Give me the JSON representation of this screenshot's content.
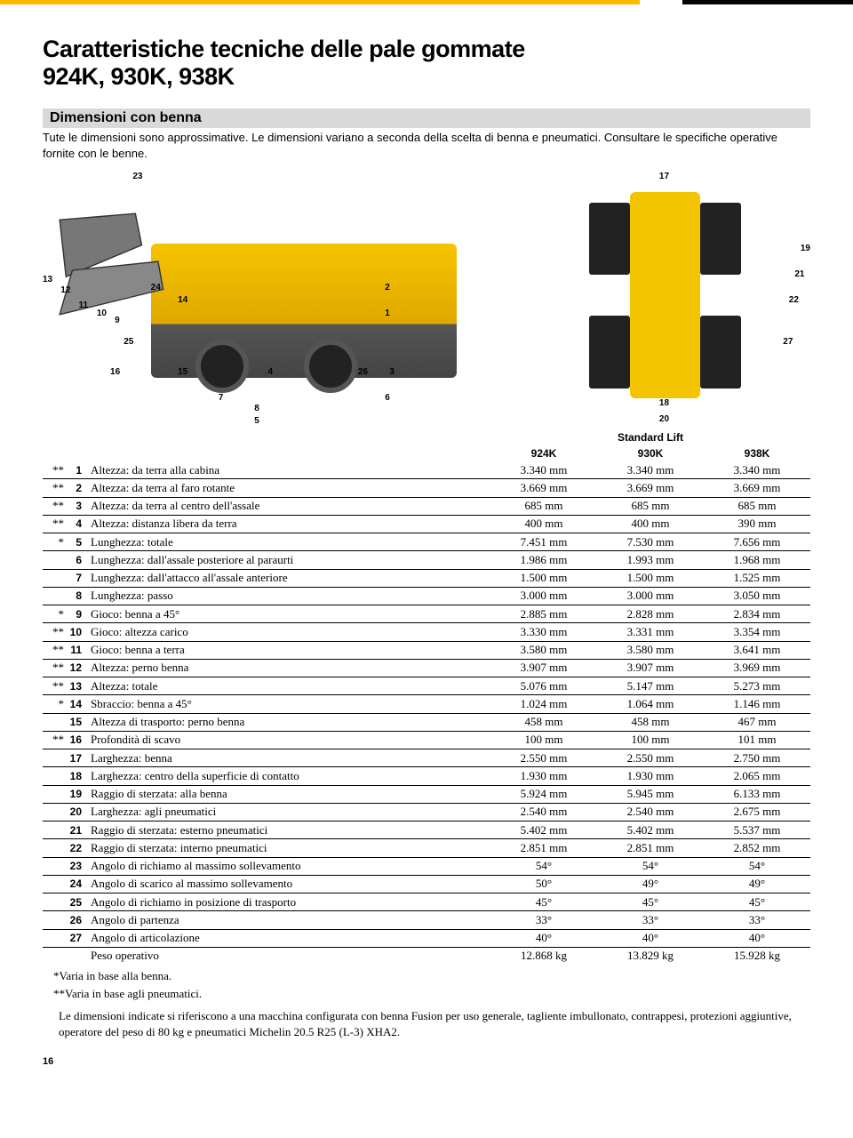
{
  "title_line1": "Caratteristiche tecniche delle pale gommate",
  "title_line2": "924K, 930K, 938K",
  "section_heading": "Dimensioni con benna",
  "intro": "Tute le dimensioni sono approssimative. Le dimensioni variano a seconda della scelta di benna e pneumatici. Consultare le specifiche operative fornite con le benne.",
  "group_header": "Standard Lift",
  "col_headers": [
    "924K",
    "930K",
    "938K"
  ],
  "diagram_labels_side": [
    "23",
    "13",
    "12",
    "11",
    "10",
    "9",
    "24",
    "14",
    "25",
    "16",
    "15",
    "7",
    "8",
    "5",
    "4",
    "2",
    "1",
    "26",
    "3",
    "6"
  ],
  "diagram_labels_top": [
    "17",
    "19",
    "21",
    "22",
    "27",
    "18",
    "20"
  ],
  "rows": [
    {
      "mark": "**",
      "n": "1",
      "desc": "Altezza: da terra alla cabina",
      "v": [
        "3.340 mm",
        "3.340 mm",
        "3.340 mm"
      ]
    },
    {
      "mark": "**",
      "n": "2",
      "desc": "Altezza: da terra al faro rotante",
      "v": [
        "3.669 mm",
        "3.669 mm",
        "3.669 mm"
      ]
    },
    {
      "mark": "**",
      "n": "3",
      "desc": "Altezza: da terra al centro dell'assale",
      "v": [
        "685 mm",
        "685 mm",
        "685 mm"
      ]
    },
    {
      "mark": "**",
      "n": "4",
      "desc": "Altezza: distanza libera da terra",
      "v": [
        "400 mm",
        "400 mm",
        "390 mm"
      ]
    },
    {
      "mark": "*",
      "n": "5",
      "desc": "Lunghezza: totale",
      "v": [
        "7.451 mm",
        "7.530 mm",
        "7.656 mm"
      ]
    },
    {
      "mark": "",
      "n": "6",
      "desc": "Lunghezza: dall'assale posteriore al paraurti",
      "v": [
        "1.986 mm",
        "1.993 mm",
        "1.968 mm"
      ]
    },
    {
      "mark": "",
      "n": "7",
      "desc": "Lunghezza: dall'attacco all'assale anteriore",
      "v": [
        "1.500 mm",
        "1.500 mm",
        "1.525 mm"
      ]
    },
    {
      "mark": "",
      "n": "8",
      "desc": "Lunghezza: passo",
      "v": [
        "3.000 mm",
        "3.000 mm",
        "3.050 mm"
      ]
    },
    {
      "mark": "*",
      "n": "9",
      "desc": "Gioco: benna a 45°",
      "v": [
        "2.885 mm",
        "2.828 mm",
        "2.834 mm"
      ]
    },
    {
      "mark": "**",
      "n": "10",
      "desc": "Gioco: altezza carico",
      "v": [
        "3.330 mm",
        "3.331 mm",
        "3.354 mm"
      ]
    },
    {
      "mark": "**",
      "n": "11",
      "desc": "Gioco: benna a terra",
      "v": [
        "3.580 mm",
        "3.580 mm",
        "3.641 mm"
      ]
    },
    {
      "mark": "**",
      "n": "12",
      "desc": "Altezza: perno benna",
      "v": [
        "3.907 mm",
        "3.907 mm",
        "3.969 mm"
      ]
    },
    {
      "mark": "**",
      "n": "13",
      "desc": "Altezza: totale",
      "v": [
        "5.076 mm",
        "5.147 mm",
        "5.273 mm"
      ]
    },
    {
      "mark": "*",
      "n": "14",
      "desc": "Sbraccio: benna a 45°",
      "v": [
        "1.024 mm",
        "1.064 mm",
        "1.146 mm"
      ]
    },
    {
      "mark": "",
      "n": "15",
      "desc": "Altezza di trasporto: perno benna",
      "v": [
        "458 mm",
        "458 mm",
        "467 mm"
      ]
    },
    {
      "mark": "**",
      "n": "16",
      "desc": "Profondità di scavo",
      "v": [
        "100 mm",
        "100 mm",
        "101 mm"
      ]
    },
    {
      "mark": "",
      "n": "17",
      "desc": "Larghezza: benna",
      "v": [
        "2.550 mm",
        "2.550 mm",
        "2.750 mm"
      ]
    },
    {
      "mark": "",
      "n": "18",
      "desc": "Larghezza: centro della superficie di contatto",
      "v": [
        "1.930 mm",
        "1.930 mm",
        "2.065 mm"
      ]
    },
    {
      "mark": "",
      "n": "19",
      "desc": "Raggio di sterzata: alla benna",
      "v": [
        "5.924 mm",
        "5.945 mm",
        "6.133 mm"
      ]
    },
    {
      "mark": "",
      "n": "20",
      "desc": "Larghezza: agli pneumatici",
      "v": [
        "2.540 mm",
        "2.540 mm",
        "2.675 mm"
      ]
    },
    {
      "mark": "",
      "n": "21",
      "desc": "Raggio di sterzata: esterno pneumatici",
      "v": [
        "5.402 mm",
        "5.402 mm",
        "5.537 mm"
      ]
    },
    {
      "mark": "",
      "n": "22",
      "desc": "Raggio di sterzata: interno pneumatici",
      "v": [
        "2.851 mm",
        "2.851 mm",
        "2.852 mm"
      ]
    },
    {
      "mark": "",
      "n": "23",
      "desc": "Angolo di richiamo al massimo sollevamento",
      "v": [
        "54°",
        "54°",
        "54°"
      ]
    },
    {
      "mark": "",
      "n": "24",
      "desc": "Angolo di scarico al massimo sollevamento",
      "v": [
        "50°",
        "49°",
        "49°"
      ]
    },
    {
      "mark": "",
      "n": "25",
      "desc": "Angolo di richiamo in posizione di trasporto",
      "v": [
        "45°",
        "45°",
        "45°"
      ]
    },
    {
      "mark": "",
      "n": "26",
      "desc": "Angolo di partenza",
      "v": [
        "33°",
        "33°",
        "33°"
      ]
    },
    {
      "mark": "",
      "n": "27",
      "desc": "Angolo di articolazione",
      "v": [
        "40°",
        "40°",
        "40°"
      ]
    }
  ],
  "weight_row": {
    "desc": "Peso operativo",
    "v": [
      "12.868 kg",
      "13.829 kg",
      "15.928 kg"
    ]
  },
  "footnote1": "*Varia in base alla benna.",
  "footnote2": "**Varia in base agli pneumatici.",
  "footnote3": "Le dimensioni indicate si riferiscono a una macchina configurata con benna Fusion per uso generale, tagliente imbullonato, contrappesi, protezioni aggiuntive, operatore del peso di 80 kg e pneumatici Michelin 20.5 R25 (L-3) XHA2.",
  "page_number": "16",
  "colors": {
    "accent_yellow": "#f9ba00",
    "bar_black": "#000000",
    "subtitle_bg": "#d9d9d9"
  }
}
